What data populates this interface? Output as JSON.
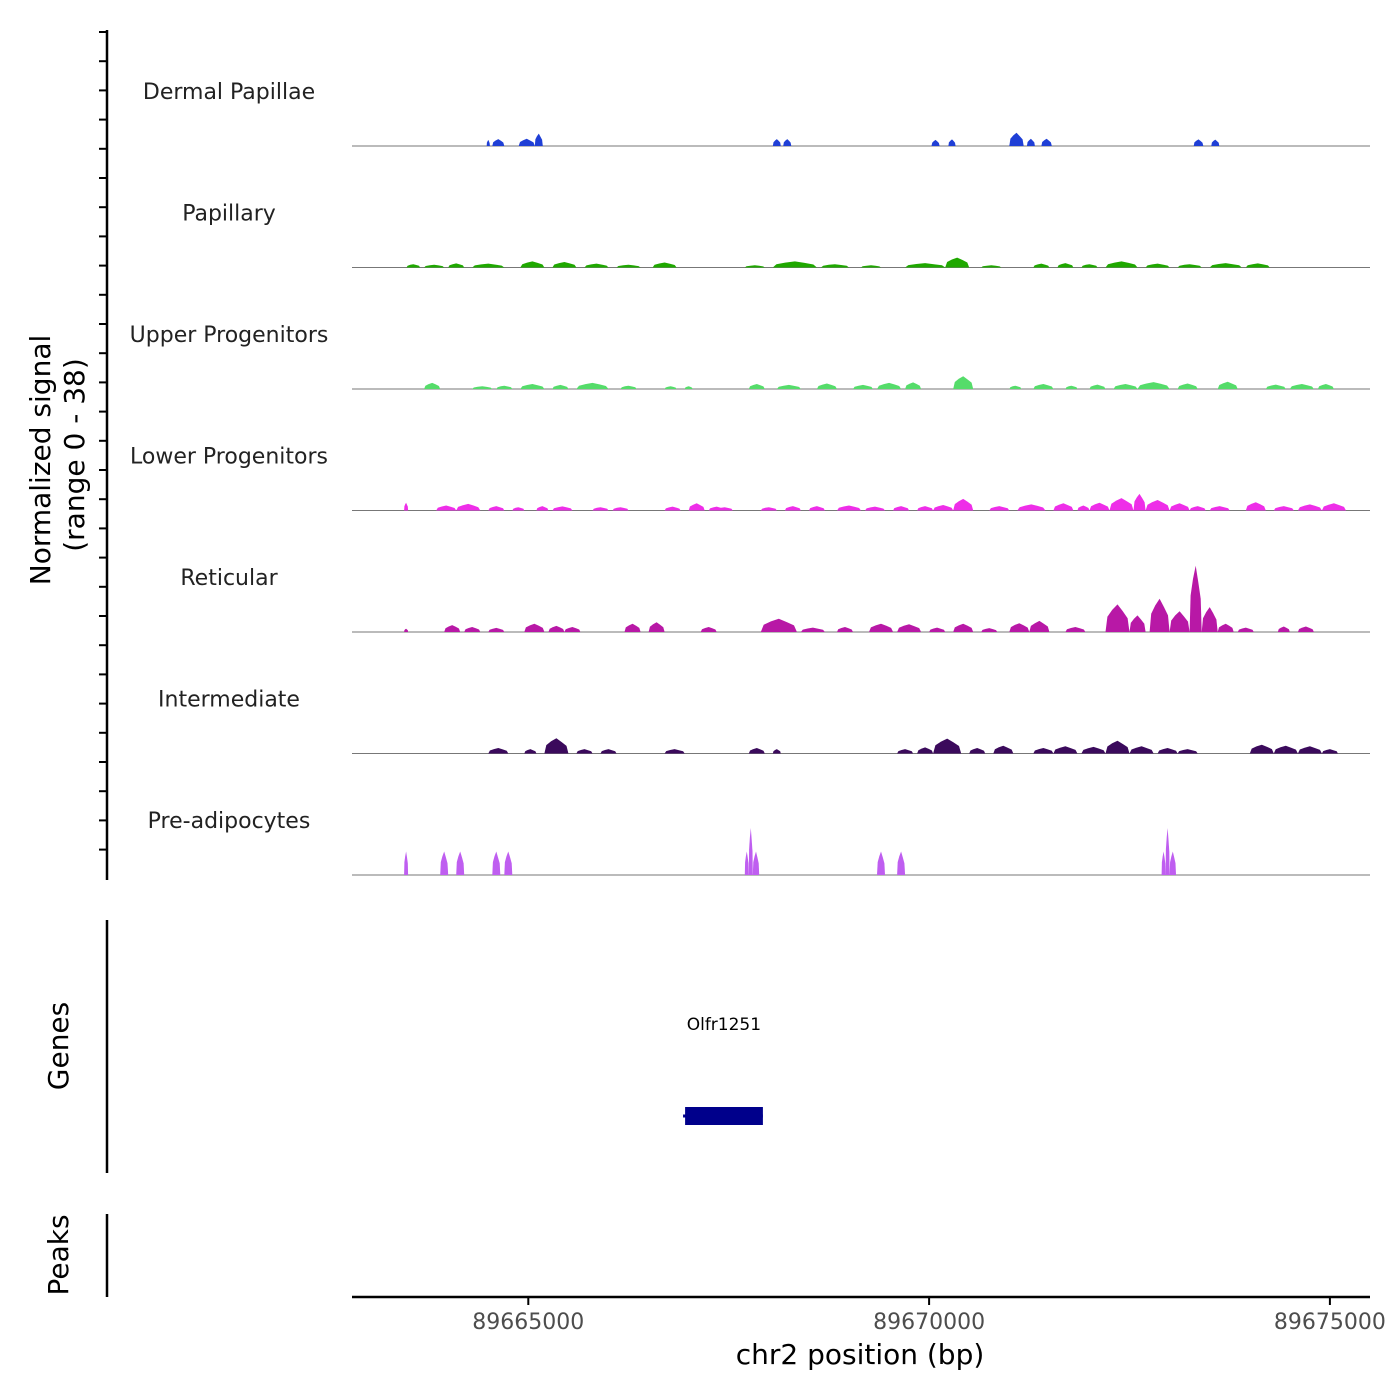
{
  "chart_data": {
    "type": "area",
    "chromosome": "chr2",
    "xlabel": "chr2 position (bp)",
    "ylabel_line1": "Normalized signal",
    "ylabel_line2": "(range 0 - 38)",
    "xlim": [
      89662800,
      89675500
    ],
    "ylim": [
      0,
      38
    ],
    "x_ticks": [
      89665000,
      89670000,
      89675000
    ],
    "x_tick_labels": [
      "89665000",
      "89670000",
      "89675000"
    ],
    "tracks": [
      {
        "name": "Dermal Papillae",
        "color": "#1f3fd6",
        "segments": [
          {
            "start": 89664480,
            "end": 89664520,
            "peak": 2.2
          },
          {
            "start": 89664550,
            "end": 89664700,
            "peak": 2.5
          },
          {
            "start": 89664880,
            "end": 89665080,
            "peak": 2.6
          },
          {
            "start": 89665080,
            "end": 89665180,
            "peak": 4.5
          },
          {
            "start": 89668050,
            "end": 89668150,
            "peak": 2.5
          },
          {
            "start": 89668180,
            "end": 89668280,
            "peak": 2.5
          },
          {
            "start": 89670030,
            "end": 89670130,
            "peak": 2.2
          },
          {
            "start": 89670240,
            "end": 89670330,
            "peak": 2.4
          },
          {
            "start": 89671000,
            "end": 89671180,
            "peak": 4.8
          },
          {
            "start": 89671220,
            "end": 89671320,
            "peak": 2.6
          },
          {
            "start": 89671400,
            "end": 89671530,
            "peak": 2.6
          },
          {
            "start": 89673300,
            "end": 89673420,
            "peak": 2.4
          },
          {
            "start": 89673520,
            "end": 89673620,
            "peak": 2.3
          }
        ]
      },
      {
        "name": "Papillary",
        "color": "#1fa800",
        "segments": [
          {
            "start": 89663480,
            "end": 89663650,
            "peak": 1.2
          },
          {
            "start": 89663700,
            "end": 89663950,
            "peak": 1.0
          },
          {
            "start": 89664000,
            "end": 89664200,
            "peak": 1.5
          },
          {
            "start": 89664300,
            "end": 89664700,
            "peak": 1.4
          },
          {
            "start": 89664900,
            "end": 89665200,
            "peak": 2.2
          },
          {
            "start": 89665300,
            "end": 89665600,
            "peak": 2.0
          },
          {
            "start": 89665700,
            "end": 89666000,
            "peak": 1.4
          },
          {
            "start": 89666100,
            "end": 89666400,
            "peak": 1.0
          },
          {
            "start": 89666550,
            "end": 89666850,
            "peak": 1.8
          },
          {
            "start": 89667700,
            "end": 89667950,
            "peak": 0.8
          },
          {
            "start": 89668050,
            "end": 89668600,
            "peak": 2.2
          },
          {
            "start": 89668650,
            "end": 89669000,
            "peak": 1.2
          },
          {
            "start": 89669150,
            "end": 89669400,
            "peak": 0.8
          },
          {
            "start": 89669700,
            "end": 89670200,
            "peak": 1.6
          },
          {
            "start": 89670200,
            "end": 89670500,
            "peak": 3.6
          },
          {
            "start": 89670650,
            "end": 89670900,
            "peak": 0.8
          },
          {
            "start": 89671300,
            "end": 89671500,
            "peak": 1.4
          },
          {
            "start": 89671600,
            "end": 89671800,
            "peak": 1.6
          },
          {
            "start": 89671900,
            "end": 89672100,
            "peak": 1.2
          },
          {
            "start": 89672200,
            "end": 89672600,
            "peak": 2.2
          },
          {
            "start": 89672700,
            "end": 89673000,
            "peak": 1.4
          },
          {
            "start": 89673100,
            "end": 89673400,
            "peak": 1.2
          },
          {
            "start": 89673500,
            "end": 89673900,
            "peak": 1.6
          },
          {
            "start": 89673950,
            "end": 89674250,
            "peak": 1.5
          }
        ]
      },
      {
        "name": "Upper Progenitors",
        "color": "#55dc6a",
        "segments": [
          {
            "start": 89663700,
            "end": 89663900,
            "peak": 2.2
          },
          {
            "start": 89664300,
            "end": 89664550,
            "peak": 1.0
          },
          {
            "start": 89664600,
            "end": 89664800,
            "peak": 1.2
          },
          {
            "start": 89664900,
            "end": 89665200,
            "peak": 1.8
          },
          {
            "start": 89665300,
            "end": 89665500,
            "peak": 1.5
          },
          {
            "start": 89665600,
            "end": 89666000,
            "peak": 2.2
          },
          {
            "start": 89666150,
            "end": 89666350,
            "peak": 1.2
          },
          {
            "start": 89666700,
            "end": 89666850,
            "peak": 1.0
          },
          {
            "start": 89666950,
            "end": 89667050,
            "peak": 1.0
          },
          {
            "start": 89667750,
            "end": 89667950,
            "peak": 1.8
          },
          {
            "start": 89668100,
            "end": 89668400,
            "peak": 1.5
          },
          {
            "start": 89668600,
            "end": 89668850,
            "peak": 2.0
          },
          {
            "start": 89669050,
            "end": 89669300,
            "peak": 1.5
          },
          {
            "start": 89669350,
            "end": 89669650,
            "peak": 2.2
          },
          {
            "start": 89669700,
            "end": 89669900,
            "peak": 2.4
          },
          {
            "start": 89670300,
            "end": 89670550,
            "peak": 4.6
          },
          {
            "start": 89671000,
            "end": 89671150,
            "peak": 1.2
          },
          {
            "start": 89671300,
            "end": 89671550,
            "peak": 1.8
          },
          {
            "start": 89671700,
            "end": 89671850,
            "peak": 1.2
          },
          {
            "start": 89672000,
            "end": 89672200,
            "peak": 1.6
          },
          {
            "start": 89672300,
            "end": 89672600,
            "peak": 1.8
          },
          {
            "start": 89672600,
            "end": 89673000,
            "peak": 2.5
          },
          {
            "start": 89673100,
            "end": 89673350,
            "peak": 2.0
          },
          {
            "start": 89673600,
            "end": 89673850,
            "peak": 2.6
          },
          {
            "start": 89674200,
            "end": 89674450,
            "peak": 1.6
          },
          {
            "start": 89674500,
            "end": 89674800,
            "peak": 1.8
          },
          {
            "start": 89674850,
            "end": 89675050,
            "peak": 1.8
          }
        ]
      },
      {
        "name": "Lower Progenitors",
        "color": "#ee2ee8",
        "segments": [
          {
            "start": 89663450,
            "end": 89663500,
            "peak": 2.8
          },
          {
            "start": 89663850,
            "end": 89664100,
            "peak": 1.8
          },
          {
            "start": 89664100,
            "end": 89664400,
            "peak": 2.4
          },
          {
            "start": 89664500,
            "end": 89664700,
            "peak": 1.6
          },
          {
            "start": 89664800,
            "end": 89664950,
            "peak": 1.2
          },
          {
            "start": 89665100,
            "end": 89665250,
            "peak": 1.6
          },
          {
            "start": 89665300,
            "end": 89665550,
            "peak": 1.5
          },
          {
            "start": 89665800,
            "end": 89666000,
            "peak": 1.2
          },
          {
            "start": 89666050,
            "end": 89666250,
            "peak": 1.2
          },
          {
            "start": 89666700,
            "end": 89666900,
            "peak": 1.4
          },
          {
            "start": 89667000,
            "end": 89667200,
            "peak": 2.6
          },
          {
            "start": 89667250,
            "end": 89667450,
            "peak": 1.4
          },
          {
            "start": 89667350,
            "end": 89667550,
            "peak": 1.2
          },
          {
            "start": 89667900,
            "end": 89668100,
            "peak": 1.2
          },
          {
            "start": 89668200,
            "end": 89668400,
            "peak": 1.6
          },
          {
            "start": 89668500,
            "end": 89668700,
            "peak": 1.6
          },
          {
            "start": 89668850,
            "end": 89669150,
            "peak": 1.8
          },
          {
            "start": 89669200,
            "end": 89669450,
            "peak": 1.4
          },
          {
            "start": 89669550,
            "end": 89669750,
            "peak": 1.6
          },
          {
            "start": 89669850,
            "end": 89670050,
            "peak": 1.6
          },
          {
            "start": 89670050,
            "end": 89670300,
            "peak": 2.0
          },
          {
            "start": 89670300,
            "end": 89670550,
            "peak": 4.2
          },
          {
            "start": 89670750,
            "end": 89671000,
            "peak": 1.6
          },
          {
            "start": 89671100,
            "end": 89671450,
            "peak": 2.2
          },
          {
            "start": 89671550,
            "end": 89671800,
            "peak": 2.6
          },
          {
            "start": 89671850,
            "end": 89672000,
            "peak": 1.8
          },
          {
            "start": 89672000,
            "end": 89672250,
            "peak": 2.8
          },
          {
            "start": 89672250,
            "end": 89672550,
            "peak": 4.5
          },
          {
            "start": 89672550,
            "end": 89672700,
            "peak": 6.0
          },
          {
            "start": 89672700,
            "end": 89673000,
            "peak": 3.8
          },
          {
            "start": 89673000,
            "end": 89673250,
            "peak": 2.6
          },
          {
            "start": 89673250,
            "end": 89673450,
            "peak": 1.6
          },
          {
            "start": 89673500,
            "end": 89673750,
            "peak": 1.6
          },
          {
            "start": 89673950,
            "end": 89674200,
            "peak": 3.0
          },
          {
            "start": 89674300,
            "end": 89674550,
            "peak": 1.6
          },
          {
            "start": 89674600,
            "end": 89674900,
            "peak": 2.2
          },
          {
            "start": 89674900,
            "end": 89675200,
            "peak": 2.6
          }
        ]
      },
      {
        "name": "Reticular",
        "color": "#b818a6",
        "segments": [
          {
            "start": 89663450,
            "end": 89663500,
            "peak": 1.2
          },
          {
            "start": 89663950,
            "end": 89664150,
            "peak": 2.5
          },
          {
            "start": 89664200,
            "end": 89664400,
            "peak": 1.8
          },
          {
            "start": 89664500,
            "end": 89664700,
            "peak": 1.5
          },
          {
            "start": 89664950,
            "end": 89665200,
            "peak": 3.0
          },
          {
            "start": 89665250,
            "end": 89665450,
            "peak": 2.2
          },
          {
            "start": 89665450,
            "end": 89665650,
            "peak": 1.8
          },
          {
            "start": 89666200,
            "end": 89666400,
            "peak": 3.0
          },
          {
            "start": 89666500,
            "end": 89666700,
            "peak": 3.5
          },
          {
            "start": 89667150,
            "end": 89667350,
            "peak": 1.8
          },
          {
            "start": 89667900,
            "end": 89668350,
            "peak": 4.8
          },
          {
            "start": 89668400,
            "end": 89668700,
            "peak": 1.6
          },
          {
            "start": 89668850,
            "end": 89669050,
            "peak": 1.8
          },
          {
            "start": 89669250,
            "end": 89669550,
            "peak": 3.0
          },
          {
            "start": 89669600,
            "end": 89669900,
            "peak": 2.8
          },
          {
            "start": 89670000,
            "end": 89670200,
            "peak": 1.6
          },
          {
            "start": 89670300,
            "end": 89670550,
            "peak": 3.0
          },
          {
            "start": 89670650,
            "end": 89670850,
            "peak": 1.4
          },
          {
            "start": 89671000,
            "end": 89671250,
            "peak": 3.2
          },
          {
            "start": 89671250,
            "end": 89671500,
            "peak": 4.0
          },
          {
            "start": 89671700,
            "end": 89671950,
            "peak": 1.8
          },
          {
            "start": 89672200,
            "end": 89672500,
            "peak": 10.0
          },
          {
            "start": 89672500,
            "end": 89672700,
            "peak": 6.0
          },
          {
            "start": 89672750,
            "end": 89673000,
            "peak": 12.0
          },
          {
            "start": 89673000,
            "end": 89673250,
            "peak": 7.5
          },
          {
            "start": 89673250,
            "end": 89673400,
            "peak": 24.0
          },
          {
            "start": 89673400,
            "end": 89673600,
            "peak": 9.0
          },
          {
            "start": 89673600,
            "end": 89673800,
            "peak": 3.0
          },
          {
            "start": 89673850,
            "end": 89674050,
            "peak": 1.6
          },
          {
            "start": 89674350,
            "end": 89674500,
            "peak": 2.0
          },
          {
            "start": 89674600,
            "end": 89674800,
            "peak": 2.0
          }
        ]
      },
      {
        "name": "Intermediate",
        "color": "#3b0a5c",
        "segments": [
          {
            "start": 89664500,
            "end": 89664750,
            "peak": 2.0
          },
          {
            "start": 89664950,
            "end": 89665100,
            "peak": 1.6
          },
          {
            "start": 89665200,
            "end": 89665500,
            "peak": 5.5
          },
          {
            "start": 89665600,
            "end": 89665800,
            "peak": 1.6
          },
          {
            "start": 89665900,
            "end": 89666100,
            "peak": 1.6
          },
          {
            "start": 89666700,
            "end": 89666950,
            "peak": 1.6
          },
          {
            "start": 89667750,
            "end": 89667950,
            "peak": 2.0
          },
          {
            "start": 89668050,
            "end": 89668150,
            "peak": 1.6
          },
          {
            "start": 89669600,
            "end": 89669800,
            "peak": 1.6
          },
          {
            "start": 89669850,
            "end": 89670050,
            "peak": 2.2
          },
          {
            "start": 89670050,
            "end": 89670400,
            "peak": 5.4
          },
          {
            "start": 89670500,
            "end": 89670700,
            "peak": 2.0
          },
          {
            "start": 89670800,
            "end": 89671050,
            "peak": 2.8
          },
          {
            "start": 89671300,
            "end": 89671550,
            "peak": 2.0
          },
          {
            "start": 89671550,
            "end": 89671850,
            "peak": 2.6
          },
          {
            "start": 89671900,
            "end": 89672200,
            "peak": 2.4
          },
          {
            "start": 89672200,
            "end": 89672500,
            "peak": 4.6
          },
          {
            "start": 89672500,
            "end": 89672800,
            "peak": 2.6
          },
          {
            "start": 89672850,
            "end": 89673100,
            "peak": 2.0
          },
          {
            "start": 89673100,
            "end": 89673350,
            "peak": 1.6
          },
          {
            "start": 89674000,
            "end": 89674300,
            "peak": 3.2
          },
          {
            "start": 89674300,
            "end": 89674600,
            "peak": 2.8
          },
          {
            "start": 89674600,
            "end": 89674900,
            "peak": 2.6
          },
          {
            "start": 89674900,
            "end": 89675100,
            "peak": 1.6
          }
        ]
      },
      {
        "name": "Pre-adipocytes",
        "color": "#bf5ef0",
        "segments": [
          {
            "start": 89663450,
            "end": 89663500,
            "peak": 8.5
          },
          {
            "start": 89663900,
            "end": 89664000,
            "peak": 8.5
          },
          {
            "start": 89664100,
            "end": 89664200,
            "peak": 8.5
          },
          {
            "start": 89664550,
            "end": 89664650,
            "peak": 8.5
          },
          {
            "start": 89664700,
            "end": 89664800,
            "peak": 8.5
          },
          {
            "start": 89667700,
            "end": 89667750,
            "peak": 8.5
          },
          {
            "start": 89667750,
            "end": 89667800,
            "peak": 17.0
          },
          {
            "start": 89667800,
            "end": 89667880,
            "peak": 8.5
          },
          {
            "start": 89669350,
            "end": 89669450,
            "peak": 8.5
          },
          {
            "start": 89669600,
            "end": 89669700,
            "peak": 8.5
          },
          {
            "start": 89672900,
            "end": 89672950,
            "peak": 8.5
          },
          {
            "start": 89672950,
            "end": 89673000,
            "peak": 17.0
          },
          {
            "start": 89673000,
            "end": 89673080,
            "peak": 8.5
          }
        ]
      }
    ],
    "gene_track_label": "Genes",
    "genes": [
      {
        "name": "Olfr1251",
        "start": 89666955,
        "end": 89667925,
        "color": "#00008b"
      }
    ],
    "peak_track_label": "Peaks",
    "peaks": []
  }
}
